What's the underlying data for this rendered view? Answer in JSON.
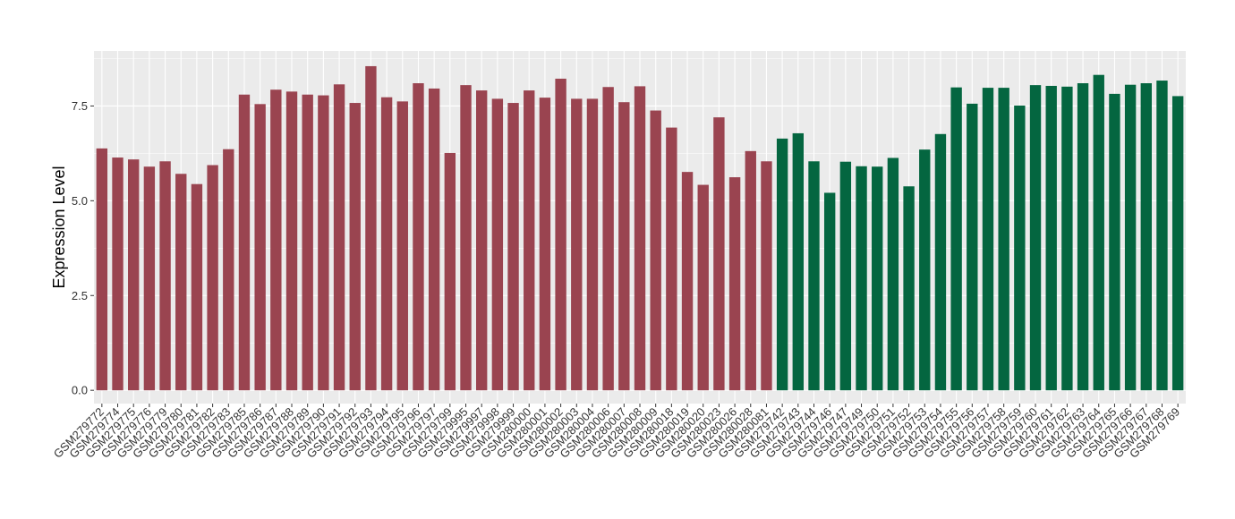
{
  "chart_data": {
    "type": "bar",
    "title": "",
    "xlabel": "",
    "ylabel": "Expression Level",
    "ylim": [
      -0.35,
      8.95
    ],
    "yticks": [
      0.0,
      2.5,
      5.0,
      7.5
    ],
    "ytick_labels": [
      "0.0",
      "2.5",
      "5.0",
      "7.5"
    ],
    "grid": true,
    "legend": "none",
    "panel_background": "#ebebeb",
    "grid_color": "#ffffff",
    "categories": [
      "GSM279772",
      "GSM279774",
      "GSM279775",
      "GSM279776",
      "GSM279779",
      "GSM279780",
      "GSM279781",
      "GSM279782",
      "GSM279783",
      "GSM279785",
      "GSM279786",
      "GSM279787",
      "GSM279788",
      "GSM279789",
      "GSM279790",
      "GSM279791",
      "GSM279792",
      "GSM279793",
      "GSM279794",
      "GSM279795",
      "GSM279796",
      "GSM279797",
      "GSM279799",
      "GSM279995",
      "GSM279997",
      "GSM279998",
      "GSM279999",
      "GSM280000",
      "GSM280001",
      "GSM280002",
      "GSM280003",
      "GSM280004",
      "GSM280006",
      "GSM280007",
      "GSM280008",
      "GSM280009",
      "GSM280018",
      "GSM280019",
      "GSM280020",
      "GSM280023",
      "GSM280026",
      "GSM280028",
      "GSM280081",
      "GSM279742",
      "GSM279743",
      "GSM279744",
      "GSM279746",
      "GSM279747",
      "GSM279749",
      "GSM279750",
      "GSM279751",
      "GSM279752",
      "GSM279753",
      "GSM279754",
      "GSM279755",
      "GSM279756",
      "GSM279757",
      "GSM279758",
      "GSM279759",
      "GSM279760",
      "GSM279761",
      "GSM279762",
      "GSM279763",
      "GSM279764",
      "GSM279765",
      "GSM279766",
      "GSM279767",
      "GSM279768",
      "GSM279769"
    ],
    "values": [
      6.38,
      6.14,
      6.09,
      5.9,
      6.04,
      5.71,
      5.44,
      5.94,
      6.36,
      7.8,
      7.55,
      7.93,
      7.88,
      7.8,
      7.78,
      8.07,
      7.58,
      8.55,
      7.73,
      7.62,
      8.1,
      7.96,
      6.26,
      8.05,
      7.91,
      7.69,
      7.58,
      7.91,
      7.72,
      8.22,
      7.69,
      7.69,
      8.0,
      7.6,
      8.02,
      7.38,
      6.93,
      5.76,
      5.42,
      7.2,
      5.62,
      6.31,
      6.04,
      6.64,
      6.78,
      6.04,
      5.21,
      6.03,
      5.91,
      5.9,
      6.13,
      5.38,
      6.35,
      6.76,
      7.99,
      7.56,
      7.98,
      7.98,
      7.51,
      8.05,
      8.03,
      8.01,
      8.1,
      8.32,
      7.82,
      8.06,
      8.1,
      8.17,
      7.76
    ],
    "groups": [
      {
        "count": 43,
        "color": "#9a4450"
      },
      {
        "count": 26,
        "color": "#046640"
      }
    ]
  }
}
